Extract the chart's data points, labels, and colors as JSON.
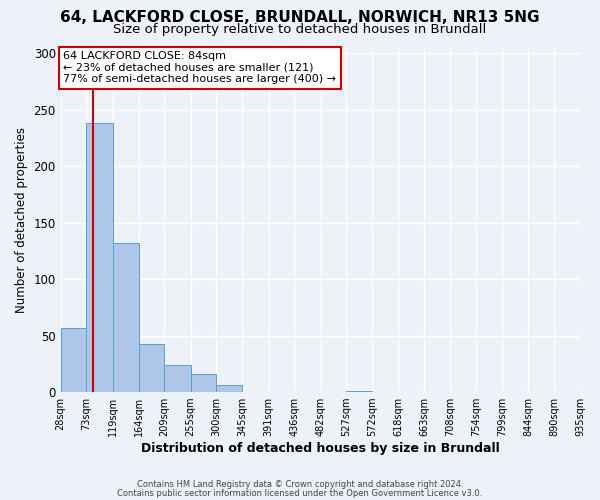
{
  "title1": "64, LACKFORD CLOSE, BRUNDALL, NORWICH, NR13 5NG",
  "title2": "Size of property relative to detached houses in Brundall",
  "xlabel": "Distribution of detached houses by size in Brundall",
  "ylabel": "Number of detached properties",
  "bar_edges": [
    28,
    73,
    119,
    164,
    209,
    255,
    300,
    345,
    391,
    436,
    482,
    527,
    572,
    618,
    663,
    708,
    754,
    799,
    844,
    890,
    935
  ],
  "bar_heights": [
    57,
    238,
    132,
    43,
    24,
    16,
    6,
    0,
    0,
    0,
    0,
    1,
    0,
    0,
    0,
    0,
    0,
    0,
    0,
    0,
    1
  ],
  "bar_color": "#aec6e8",
  "bar_edge_color": "#5a9fd4",
  "red_line_x": 84,
  "annotation_title": "64 LACKFORD CLOSE: 84sqm",
  "annotation_line1": "← 23% of detached houses are smaller (121)",
  "annotation_line2": "77% of semi-detached houses are larger (400) →",
  "annotation_box_color": "#ffffff",
  "annotation_box_edge": "#cc0000",
  "red_line_color": "#cc0000",
  "ylim": [
    0,
    305
  ],
  "tick_labels": [
    "28sqm",
    "73sqm",
    "119sqm",
    "164sqm",
    "209sqm",
    "255sqm",
    "300sqm",
    "345sqm",
    "391sqm",
    "436sqm",
    "482sqm",
    "527sqm",
    "572sqm",
    "618sqm",
    "663sqm",
    "708sqm",
    "754sqm",
    "799sqm",
    "844sqm",
    "890sqm",
    "935sqm"
  ],
  "footer1": "Contains HM Land Registry data © Crown copyright and database right 2024.",
  "footer2": "Contains public sector information licensed under the Open Government Licence v3.0.",
  "bg_color": "#eef2f8",
  "grid_color": "#ffffff",
  "title1_fontsize": 11,
  "title2_fontsize": 9.5,
  "ann_fontsize": 8,
  "xlabel_fontsize": 9,
  "ylabel_fontsize": 8.5,
  "ytick_fontsize": 8.5,
  "xtick_fontsize": 7
}
